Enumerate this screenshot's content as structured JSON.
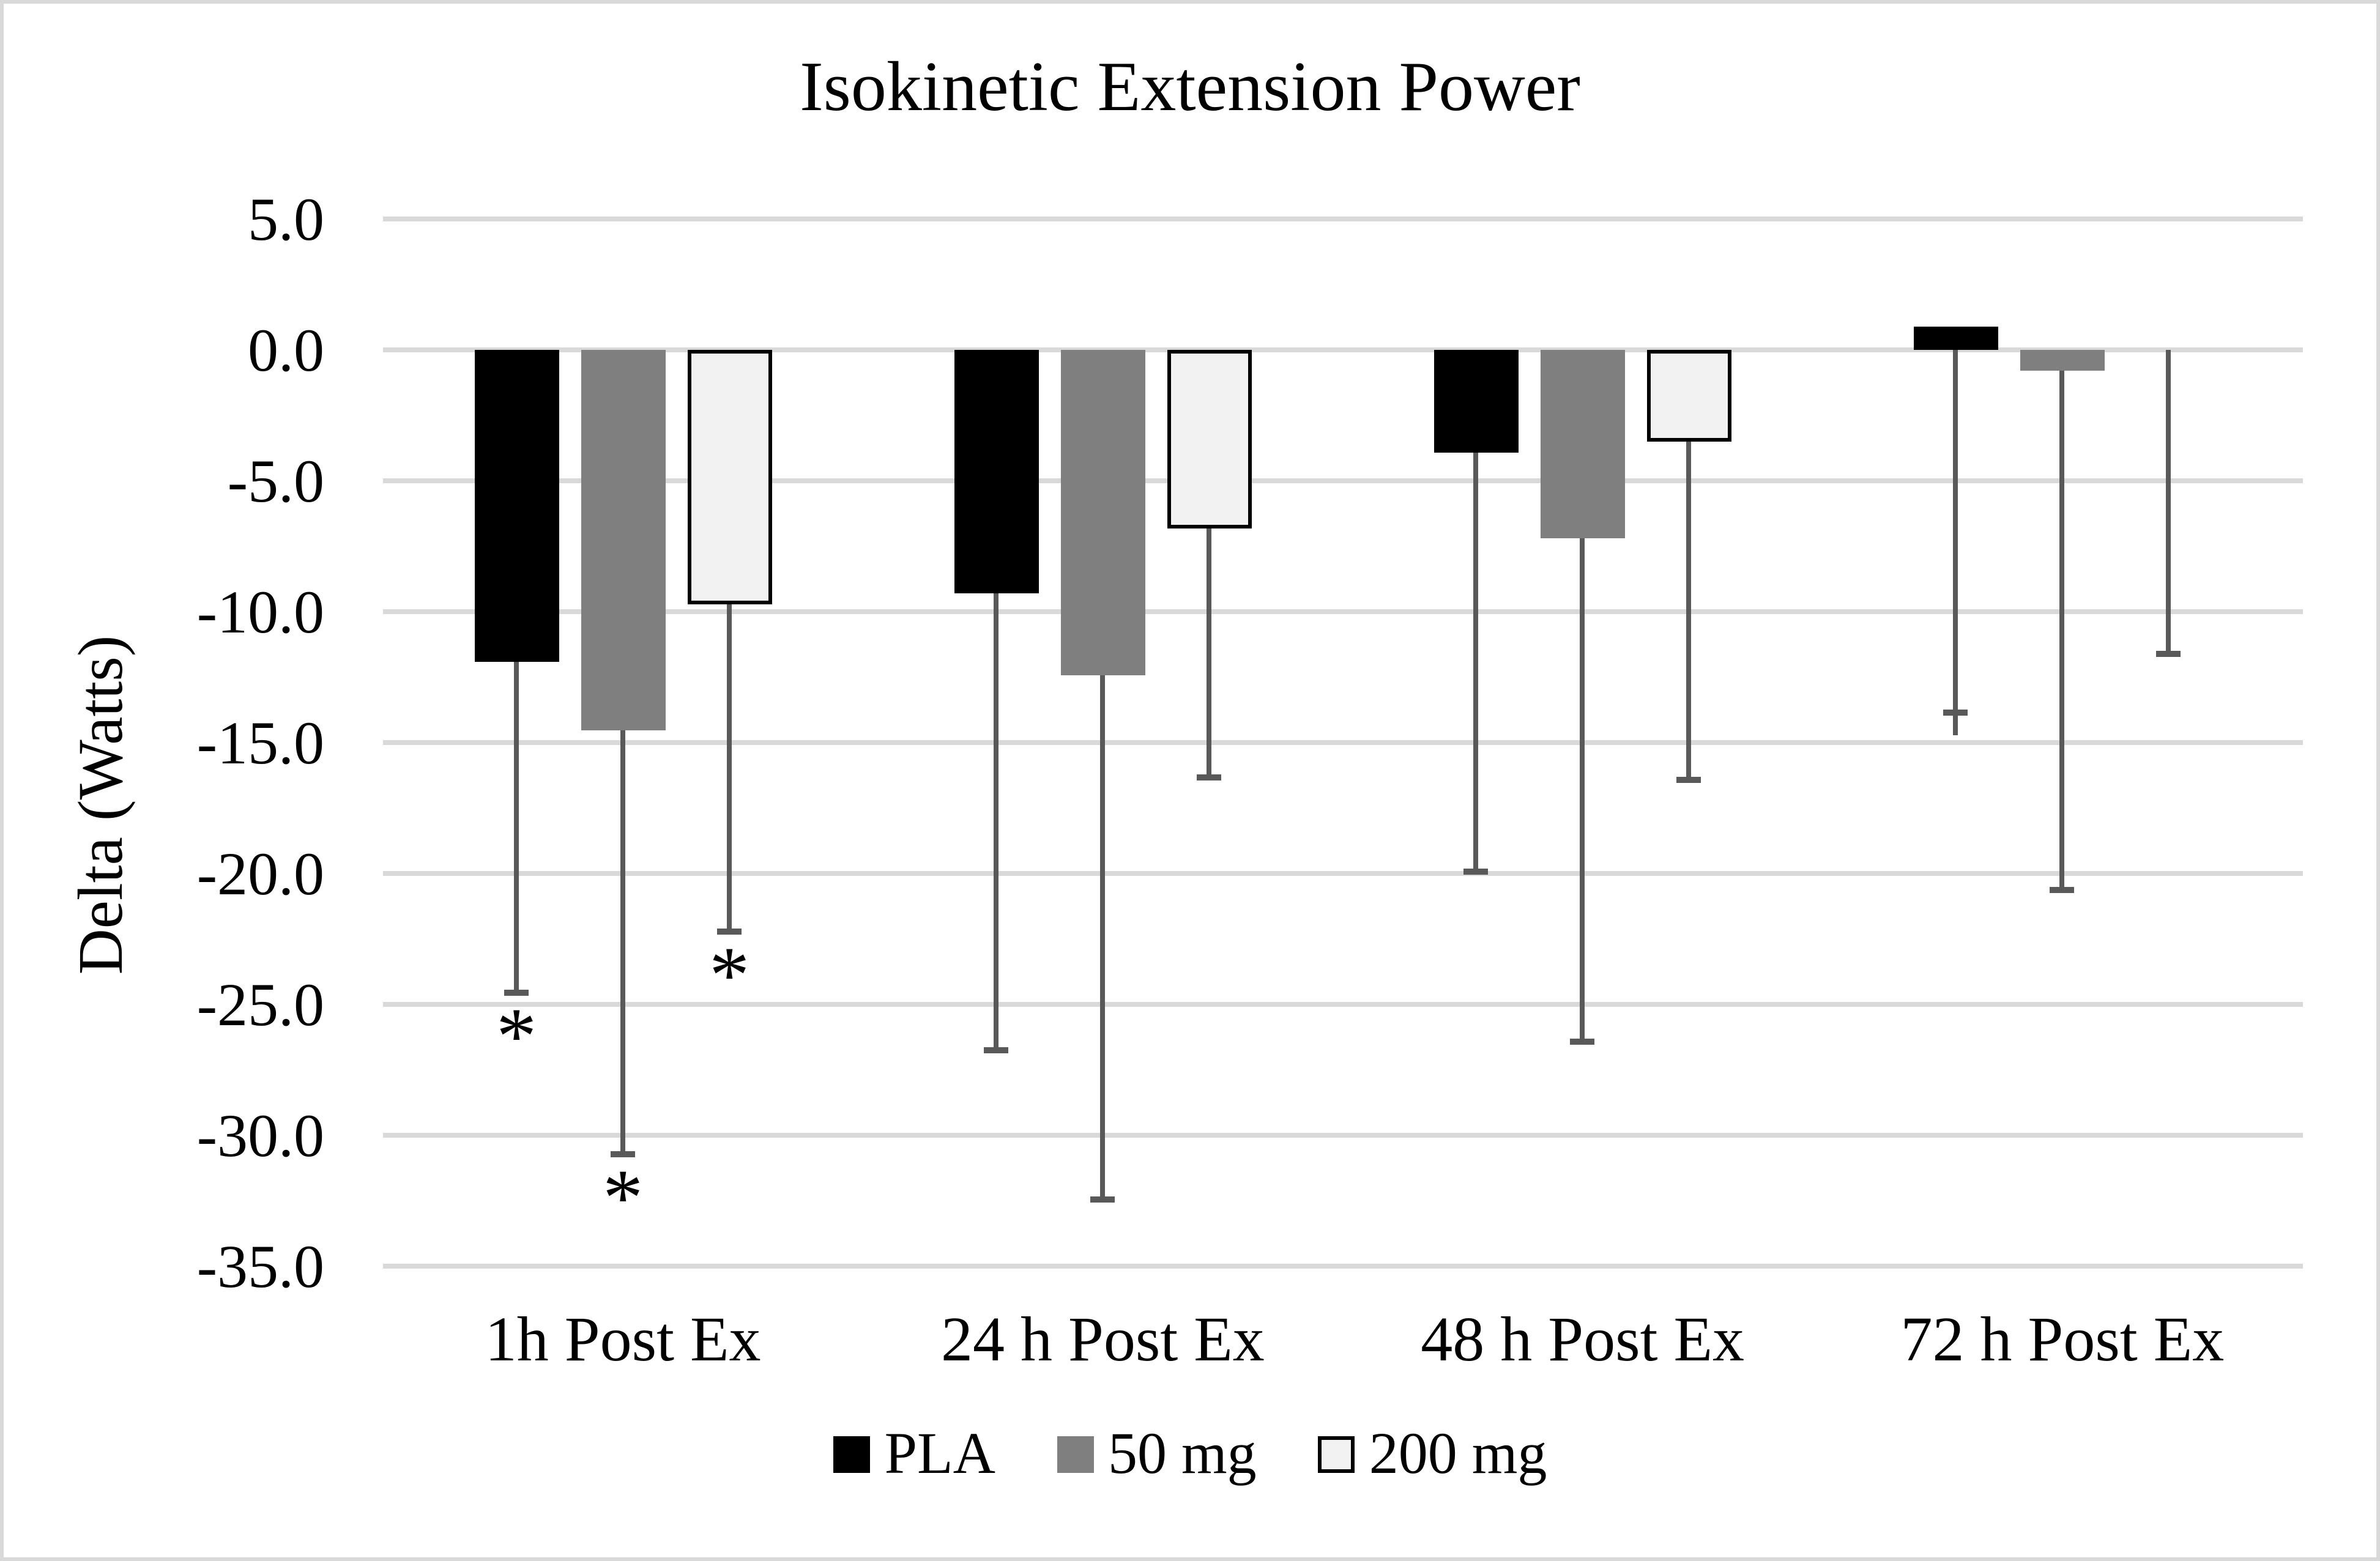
{
  "frame": {
    "border_color": "#d9d9d9",
    "background": "#ffffff"
  },
  "chart_data": {
    "type": "bar",
    "title": "Isokinetic Extension Power",
    "ylabel": "Delta (Watts)",
    "xlabel": "",
    "categories": [
      "1h Post Ex",
      "24 h Post Ex",
      "48 h Post Ex",
      "72 h Post Ex"
    ],
    "series": [
      {
        "name": "PLA",
        "fill": "#000000",
        "border": null,
        "values": [
          -11.9,
          -9.3,
          -3.9,
          0.9
        ],
        "error_whisker_to": [
          -24.5,
          -26.7,
          -19.9,
          -13.8
        ],
        "significance": [
          "*",
          "",
          "",
          ""
        ]
      },
      {
        "name": "50 mg",
        "fill": "#7f7f7f",
        "border": null,
        "values": [
          -14.5,
          -12.4,
          -7.2,
          -0.8
        ],
        "error_whisker_to": [
          -30.7,
          -32.4,
          -26.4,
          -20.6
        ],
        "significance": [
          "*",
          "",
          "",
          ""
        ]
      },
      {
        "name": "200 mg",
        "fill": "#f2f2f2",
        "border": "#000000",
        "values": [
          -9.7,
          -6.8,
          -3.5,
          0.0
        ],
        "error_whisker_to": [
          -22.2,
          -16.3,
          -16.4,
          -11.6
        ],
        "significance": [
          "*",
          "",
          "",
          ""
        ]
      }
    ],
    "ylim": [
      -35,
      5
    ],
    "ytick_step": 5,
    "ytick_labels": [
      "5.0",
      "0.0",
      "-5.0",
      "-10.0",
      "-15.0",
      "-20.0",
      "-25.0",
      "-30.0",
      "-35.0"
    ],
    "grid": true,
    "legend_position": "bottom",
    "error_bars": "downward",
    "colors": {
      "gridline": "#d9d9d9",
      "errorbar": "#595959",
      "text": "#000000",
      "background": "#ffffff"
    }
  }
}
